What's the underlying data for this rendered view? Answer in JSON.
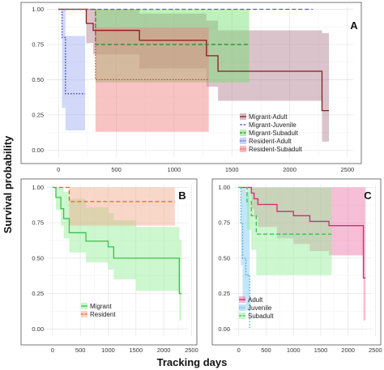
{
  "figure": {
    "xlabel": "Tracking days",
    "ylabel": "Survival probability"
  },
  "chart_data": [
    {
      "type": "line",
      "panel": "A",
      "xlim": [
        -100,
        2550
      ],
      "ylim": [
        -0.05,
        1.02
      ],
      "xticks": [
        "0",
        "500",
        "1000",
        "1500",
        "2000",
        "2500"
      ],
      "yticks": [
        "0.00",
        "0.25",
        "0.50",
        "0.75",
        "1.00"
      ],
      "grid": true,
      "legend": "bottom-right",
      "series": [
        {
          "name": "Migrant-Adult",
          "color": "#8b1a1a",
          "style": "solid",
          "x": [
            0,
            220,
            240,
            300,
            700,
            1280,
            1380,
            2280,
            2340
          ],
          "y": [
            1.0,
            1.0,
            0.9,
            0.85,
            0.78,
            0.67,
            0.56,
            0.28,
            0.28
          ],
          "lower": [
            1.0,
            1.0,
            0.76,
            0.68,
            0.58,
            0.45,
            0.35,
            0.06,
            0.06
          ],
          "upper": [
            1.0,
            1.0,
            1.0,
            1.0,
            0.97,
            0.92,
            0.85,
            0.83,
            0.83
          ],
          "fill": "#b07a8e"
        },
        {
          "name": "Migrant-Juvenile",
          "color": "#5a5ac8",
          "style": "dashed",
          "x": [
            0,
            2200
          ],
          "y": [
            1.0,
            1.0
          ],
          "lower": null,
          "upper": null,
          "fill": null
        },
        {
          "name": "Migrant-Subadult",
          "color": "#2e8b2e",
          "style": "dashed",
          "x": [
            0,
            230,
            320,
            1650
          ],
          "y": [
            1.0,
            1.0,
            0.75,
            0.75
          ],
          "lower": [
            1.0,
            1.0,
            0.48,
            0.48
          ],
          "upper": [
            1.0,
            1.0,
            1.0,
            1.0
          ],
          "fill": "#6ee06e"
        },
        {
          "name": "Resident-Adult",
          "color": "#2533c8",
          "style": "dotted",
          "x": [
            0,
            30,
            60,
            230
          ],
          "y": [
            1.0,
            0.8,
            0.4,
            0.4
          ],
          "lower": [
            1.0,
            0.3,
            0.14,
            0.14
          ],
          "upper": [
            1.0,
            1.0,
            0.81,
            0.81
          ],
          "fill": "#9aa8ef"
        },
        {
          "name": "Resident-Subadult",
          "color": "#d43a3a",
          "style": "dotted",
          "x": [
            0,
            320,
            1300
          ],
          "y": [
            1.0,
            0.5,
            0.5
          ],
          "lower": [
            1.0,
            0.13,
            0.13
          ],
          "upper": [
            1.0,
            0.87,
            0.87
          ],
          "fill": "#f07a7a"
        }
      ]
    },
    {
      "type": "line",
      "panel": "B",
      "xlim": [
        -100,
        2450
      ],
      "ylim": [
        -0.05,
        1.02
      ],
      "xticks": [
        "0",
        "500",
        "1000",
        "1500",
        "2000",
        "2500"
      ],
      "yticks": [
        "0.00",
        "0.25",
        "0.50",
        "0.75",
        "1.00"
      ],
      "grid": true,
      "legend": "bottom-left",
      "series": [
        {
          "name": "Migrant",
          "color": "#3cc04a",
          "style": "solid",
          "x": [
            0,
            60,
            150,
            200,
            300,
            600,
            1000,
            1100,
            1500,
            2200,
            2280,
            2320
          ],
          "y": [
            1.0,
            0.93,
            0.85,
            0.78,
            0.68,
            0.62,
            0.58,
            0.5,
            0.5,
            0.5,
            0.25,
            0.25
          ],
          "lower": [
            1.0,
            0.84,
            0.73,
            0.64,
            0.54,
            0.47,
            0.42,
            0.35,
            0.27,
            0.27,
            0.06,
            0.06
          ],
          "upper": [
            1.0,
            1.0,
            1.0,
            0.97,
            0.92,
            0.86,
            0.82,
            0.77,
            0.72,
            0.72,
            0.63,
            0.63
          ],
          "fill": "#8eed94"
        },
        {
          "name": "Resident",
          "color": "#e0671f",
          "style": "dashed",
          "x": [
            0,
            300,
            2200
          ],
          "y": [
            1.0,
            0.9,
            0.9
          ],
          "lower": [
            1.0,
            0.73,
            0.73
          ],
          "upper": [
            1.0,
            1.0,
            1.0
          ],
          "fill": "#f2a784"
        }
      ]
    },
    {
      "type": "line",
      "panel": "C",
      "xlim": [
        -100,
        2450
      ],
      "ylim": [
        -0.05,
        1.02
      ],
      "xticks": [
        "0",
        "500",
        "1000",
        "1500",
        "2000",
        "2500"
      ],
      "yticks": [
        "0.00",
        "0.25",
        "0.50",
        "0.75",
        "1.00"
      ],
      "grid": true,
      "legend": "bottom-left",
      "series": [
        {
          "name": "Adult",
          "color": "#d42a6e",
          "style": "solid",
          "x": [
            0,
            230,
            280,
            350,
            700,
            1000,
            1300,
            1650,
            2280,
            2320
          ],
          "y": [
            1.0,
            0.96,
            0.92,
            0.88,
            0.83,
            0.8,
            0.76,
            0.73,
            0.36,
            0.36
          ],
          "lower": [
            1.0,
            0.85,
            0.79,
            0.72,
            0.64,
            0.6,
            0.55,
            0.52,
            0.06,
            0.06
          ],
          "upper": [
            1.0,
            1.0,
            1.0,
            1.0,
            1.0,
            1.0,
            1.0,
            1.0,
            1.0,
            1.0
          ],
          "fill": "#ee6ea8"
        },
        {
          "name": "Juvenile",
          "color": "#3aa8e0",
          "style": "dotted",
          "x": [
            0,
            40,
            70,
            130,
            200
          ],
          "y": [
            1.0,
            0.75,
            0.5,
            0.38,
            0.0
          ],
          "lower": [
            1.0,
            0.45,
            0.2,
            0.13,
            0.13
          ],
          "upper": [
            1.0,
            1.0,
            1.0,
            0.97,
            0.97
          ],
          "fill": "#7cc8f0"
        },
        {
          "name": "Subadult",
          "color": "#3cc04a",
          "style": "dashed",
          "x": [
            0,
            150,
            230,
            320,
            1700
          ],
          "y": [
            1.0,
            0.9,
            0.8,
            0.67,
            0.67
          ],
          "lower": [
            1.0,
            0.7,
            0.56,
            0.38,
            0.38
          ],
          "upper": [
            1.0,
            1.0,
            1.0,
            1.0,
            1.0
          ],
          "fill": "#8eed94"
        }
      ]
    }
  ]
}
